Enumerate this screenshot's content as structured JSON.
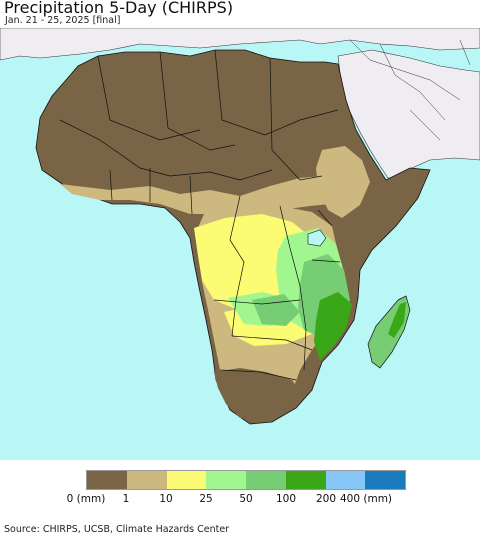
{
  "header": {
    "title": "Precipitation 5-Day (CHIRPS)",
    "subtitle": "Jan. 21 - 25, 2025 [final]"
  },
  "map": {
    "region": "Africa",
    "ocean_color": "#b9f7f7",
    "outside_land_color": "#efecf2"
  },
  "legend": {
    "ticks": [
      "0 (mm)",
      "1",
      "10",
      "25",
      "50",
      "100",
      "200",
      "400 (mm)"
    ],
    "bins": [
      {
        "range": "0-1",
        "color": "#7a6446"
      },
      {
        "range": "1-10",
        "color": "#cdb97f"
      },
      {
        "range": "10-25",
        "color": "#fbfc73"
      },
      {
        "range": "25-50",
        "color": "#a1f68f"
      },
      {
        "range": "50-100",
        "color": "#77cd73"
      },
      {
        "range": "100-200",
        "color": "#3aa719"
      },
      {
        "range": "200-400",
        "color": "#86c7f8"
      },
      {
        "range": "400+",
        "color": "#1a7bbd"
      }
    ]
  },
  "footer": {
    "source": "Source: CHIRPS, UCSB, Climate Hazards Center"
  }
}
